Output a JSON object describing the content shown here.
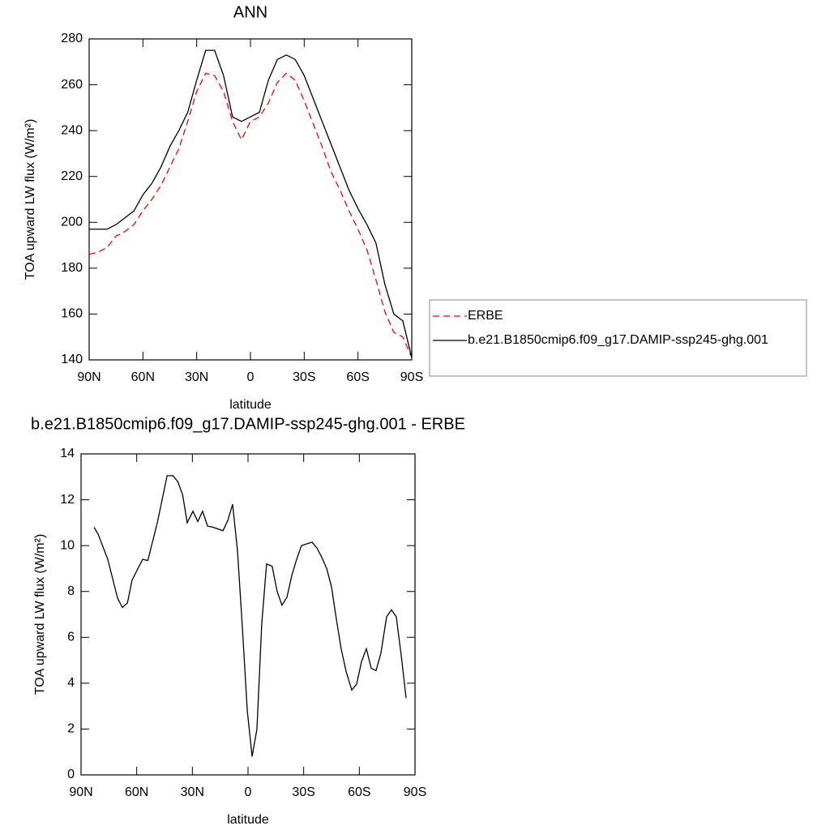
{
  "chart_data": [
    {
      "type": "line",
      "title": "ANN",
      "xlabel": "latitude",
      "ylabel": "TOA upward LW flux (W/m²)",
      "xlim": [
        90,
        -90
      ],
      "ylim": [
        140,
        280
      ],
      "xticks": [
        {
          "value": 90,
          "label": "90N"
        },
        {
          "value": 60,
          "label": "60N"
        },
        {
          "value": 30,
          "label": "30N"
        },
        0,
        {
          "value": -30,
          "label": "30S"
        },
        {
          "value": -60,
          "label": "60S"
        },
        {
          "value": -90,
          "label": "90S"
        }
      ],
      "yticks": [
        140,
        160,
        180,
        200,
        220,
        240,
        260,
        280
      ],
      "legend": "right",
      "x": [
        90,
        85,
        80,
        75,
        70,
        65,
        60,
        55,
        50,
        45,
        40,
        35,
        30,
        25,
        20,
        15,
        10,
        5,
        0,
        -5,
        -10,
        -15,
        -20,
        -25,
        -30,
        -35,
        -40,
        -45,
        -50,
        -55,
        -60,
        -65,
        -70,
        -75,
        -80,
        -85,
        -90
      ],
      "series": [
        {
          "name": "ERBE",
          "color": "#ff0000",
          "style": "dashed",
          "values": [
            186,
            187,
            189,
            194,
            196,
            199,
            205,
            210,
            216,
            224,
            232,
            244,
            257,
            265,
            264,
            257,
            244,
            236,
            244,
            246,
            252,
            261,
            265,
            262,
            253,
            243,
            233,
            222,
            214,
            205,
            197,
            188,
            175,
            161,
            152,
            150,
            141
          ]
        },
        {
          "name": "b.e21.B1850cmip6.f09_g17.DAMIP-ssp245-ghg.001",
          "color": "#000000",
          "style": "solid",
          "values": [
            197,
            197,
            197,
            199,
            202,
            205,
            212,
            217,
            224,
            233,
            240,
            248,
            262,
            275,
            275,
            264,
            246,
            244,
            246,
            248,
            262,
            271,
            273,
            271,
            264,
            254,
            244,
            234,
            224,
            214,
            206,
            199,
            191,
            173,
            160,
            157,
            141
          ]
        }
      ]
    },
    {
      "type": "line",
      "title": "b.e21.B1850cmip6.f09_g17.DAMIP-ssp245-ghg.001 - ERBE",
      "xlabel": "latitude",
      "ylabel": "TOA upward LW flux (W/m²)",
      "xlim": [
        90,
        -90
      ],
      "ylim": [
        0,
        14
      ],
      "xticks": [
        {
          "value": 90,
          "label": "90N"
        },
        {
          "value": 60,
          "label": "60N"
        },
        {
          "value": 30,
          "label": "30N"
        },
        0,
        {
          "value": -30,
          "label": "30S"
        },
        {
          "value": -60,
          "label": "60S"
        },
        {
          "value": -90,
          "label": "90S"
        }
      ],
      "yticks": [
        0,
        2,
        4,
        6,
        8,
        10,
        12,
        14
      ],
      "x": [
        83,
        80.8,
        75.6,
        70.3,
        67.7,
        65,
        62.5,
        56.8,
        54,
        48.9,
        43.6,
        40.5,
        37.9,
        35.2,
        32.8,
        29.7,
        27.1,
        24.5,
        21.8,
        18.8,
        13.5,
        10.9,
        8.3,
        5.7,
        3.1,
        0.4,
        -2.2,
        -4.8,
        -7.4,
        -10,
        -13,
        -15.7,
        -18.3,
        -21,
        -23.6,
        -26.2,
        -28.8,
        -34.5,
        -37.1,
        -39.7,
        -42.4,
        -45,
        -47.6,
        -50.2,
        -52.9,
        -55.9,
        -58.5,
        -61.2,
        -63.8,
        -66.4,
        -69,
        -71.6,
        -74.7,
        -77.3,
        -79.9,
        -82.6,
        -85.2
      ],
      "series": [
        {
          "color": "#000000",
          "style": "solid",
          "values": [
            10.8,
            10.5,
            9.4,
            7.7,
            7.3,
            7.5,
            8.5,
            9.4,
            9.35,
            11,
            13.05,
            13.05,
            12.8,
            12.2,
            11,
            11.5,
            11.05,
            11.5,
            10.85,
            10.8,
            10.65,
            11.1,
            11.8,
            9.8,
            6.5,
            2.8,
            0.8,
            2.0,
            6.6,
            9.2,
            9.1,
            8.0,
            7.4,
            7.75,
            8.7,
            9.4,
            10.0,
            10.15,
            9.9,
            9.5,
            9.0,
            8.2,
            6.8,
            5.5,
            4.5,
            3.7,
            3.95,
            4.95,
            5.5,
            4.65,
            4.55,
            5.3,
            6.9,
            7.2,
            6.9,
            5.2,
            3.35
          ]
        }
      ]
    }
  ]
}
